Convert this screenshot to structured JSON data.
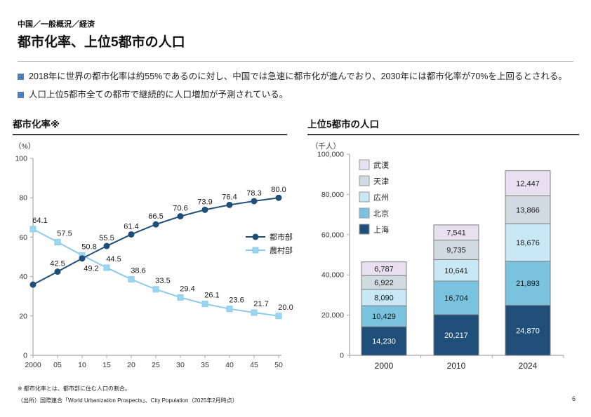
{
  "page": {
    "breadcrumb": "中国／一般概況／経済",
    "title": "都市化率、上位5都市の人口",
    "bullets": [
      "2018年に世界の都市化率は約55%であるのに対し、中国では急速に都市化が進んでおり、2030年には都市化率が70%を上回るとされる。",
      "人口上位5都市全ての都市で継続的に人口増加が予測されている。"
    ],
    "footnotes": [
      "※ 都市化率とは、都市部に住む人口の割合。",
      "（出所）国際連合「World Urbanization Prospects」、City Population（2025年2月時点）"
    ],
    "page_number": "6"
  },
  "colors": {
    "bullet_square": "#4d7ebe",
    "axis": "#a6a6a6",
    "bar_border": "#808080",
    "urban_line": "#1F4E79",
    "rural_line": "#8CCBEA"
  },
  "chart_data": [
    {
      "type": "line",
      "title": "都市化率※",
      "unit_label": "（%）",
      "x_years": [
        2000,
        2005,
        2010,
        2015,
        2020,
        2025,
        2030,
        2035,
        2040,
        2045,
        2050
      ],
      "x_tick_labels": [
        "2000",
        "05",
        "10",
        "15",
        "20",
        "25",
        "30",
        "35",
        "40",
        "45",
        "50"
      ],
      "ylim": [
        0,
        100
      ],
      "y_ticks": [
        0,
        20,
        40,
        60,
        80,
        100
      ],
      "grid": false,
      "legend_position": "middle-right",
      "series": [
        {
          "name": "都市部",
          "marker": "circle",
          "color": "#1F4E79",
          "values": [
            35.9,
            42.5,
            49.2,
            55.5,
            61.4,
            66.5,
            70.6,
            73.9,
            76.4,
            78.3,
            80.0
          ],
          "point_labels": [
            "",
            "42.5",
            "49.2",
            "55.5",
            "61.4",
            "66.5",
            "70.6",
            "73.9",
            "76.4",
            "78.3",
            "80.0"
          ],
          "label_pos": [
            "above",
            "above",
            "below-right",
            "above",
            "above",
            "above",
            "above",
            "above",
            "above",
            "above",
            "above"
          ]
        },
        {
          "name": "農村部",
          "marker": "square",
          "color": "#8CCBEA",
          "marker_fill": "#9AD6EF",
          "values": [
            64.1,
            57.5,
            50.8,
            44.5,
            38.6,
            33.5,
            29.4,
            26.1,
            23.6,
            21.7,
            20.0
          ],
          "point_labels": [
            "64.1",
            "57.5",
            "50.8",
            "44.5",
            "38.6",
            "33.5",
            "29.4",
            "26.1",
            "23.6",
            "21.7",
            "20.0"
          ],
          "label_pos": [
            "above-right",
            "above-right",
            "above-right",
            "above-right",
            "above-right",
            "above-right",
            "above-right",
            "above-right",
            "above-right",
            "above-right",
            "above-right"
          ]
        }
      ]
    },
    {
      "type": "bar",
      "stacked": true,
      "title": "上位5都市の人口",
      "unit_label": "（千人）",
      "categories": [
        "2000",
        "2010",
        "2024"
      ],
      "ylim": [
        0,
        100000
      ],
      "y_ticks": [
        0,
        20000,
        40000,
        60000,
        80000,
        100000
      ],
      "grid": false,
      "legend_position": "top-left",
      "legend_order_top_to_bottom": [
        "武漢",
        "天津",
        "広州",
        "北京",
        "上海"
      ],
      "series": [
        {
          "name": "上海",
          "color": "#1F4E79",
          "label_color": "#ffffff",
          "values": [
            14230,
            20217,
            24870
          ]
        },
        {
          "name": "北京",
          "color": "#79C3DF",
          "label_color": "#1a1a1a",
          "values": [
            10429,
            16704,
            21893
          ]
        },
        {
          "name": "広州",
          "color": "#C9E8F5",
          "label_color": "#1a1a1a",
          "values": [
            8090,
            10641,
            18676
          ]
        },
        {
          "name": "天津",
          "color": "#CFDBE1",
          "label_color": "#1a1a1a",
          "values": [
            6922,
            9735,
            13866
          ]
        },
        {
          "name": "武漢",
          "color": "#E8E0F0",
          "label_color": "#1a1a1a",
          "values": [
            6787,
            7541,
            12447
          ]
        }
      ]
    }
  ]
}
